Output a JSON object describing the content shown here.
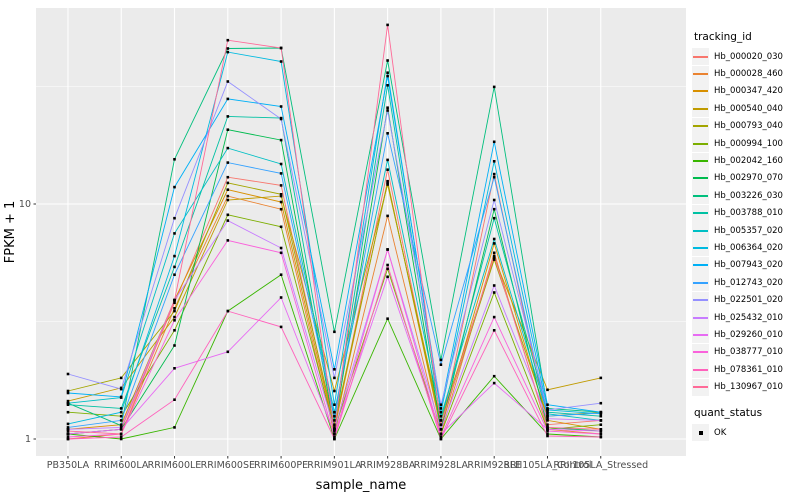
{
  "chart_data": {
    "type": "line",
    "xlabel": "sample_name",
    "ylabel": "FPKM + 1",
    "y_scale": "log10",
    "y_ticks": [
      1,
      10
    ],
    "y_minor_ticks": [
      3.16,
      31.6
    ],
    "ylim": [
      0.92,
      67
    ],
    "grid": "on",
    "panel_bg": "#EBEBEB",
    "grid_color": "#FFFFFF",
    "point_color": "#000000",
    "axis_text_color": "#4D4D4D",
    "legend": {
      "color_title": "tracking_id",
      "shape_title": "quant_status",
      "shape_items": [
        {
          "label": "OK"
        }
      ],
      "position": "right"
    },
    "categories": [
      "PB350LA",
      "RRIM600LA",
      "RRIM600LE",
      "RRIM600SE",
      "RRIM600PE",
      "RRIM901LA",
      "RRIM928BA",
      "RRIM928LA",
      "RRIM928LE",
      "RRII105LA_Control",
      "RRII105LA_Stressed"
    ],
    "series": [
      {
        "name": "Hb_000020_030",
        "color": "#F8766D",
        "values": [
          1.05,
          1.1,
          3.8,
          13.0,
          12.0,
          1.1,
          14.0,
          1.1,
          13.4,
          1.15,
          1.2
        ]
      },
      {
        "name": "Hb_000028_460",
        "color": "#EA8331",
        "values": [
          1.0,
          1.05,
          3.6,
          10.8,
          9.5,
          1.05,
          8.9,
          1.05,
          6.2,
          1.1,
          1.05
        ]
      },
      {
        "name": "Hb_000347_420",
        "color": "#D89000",
        "values": [
          1.1,
          1.15,
          3.9,
          11.5,
          10.2,
          1.1,
          12.5,
          1.1,
          6.8,
          1.2,
          1.1
        ]
      },
      {
        "name": "Hb_000540_040",
        "color": "#C09B00",
        "values": [
          1.45,
          1.65,
          3.3,
          10.4,
          10.8,
          1.6,
          12.1,
          1.2,
          5.9,
          1.62,
          1.82
        ]
      },
      {
        "name": "Hb_000793_040",
        "color": "#A3A500",
        "values": [
          1.6,
          1.82,
          3.5,
          12.3,
          11.0,
          1.15,
          12.3,
          1.15,
          5.8,
          1.25,
          1.3
        ]
      },
      {
        "name": "Hb_000994_100",
        "color": "#7CAE00",
        "values": [
          1.3,
          1.25,
          2.9,
          9.0,
          8.0,
          1.1,
          5.3,
          1.05,
          4.2,
          1.1,
          1.15
        ]
      },
      {
        "name": "Hb_002042_160",
        "color": "#39B600",
        "values": [
          1.05,
          1.0,
          1.12,
          3.5,
          5.0,
          1.0,
          3.25,
          1.0,
          1.85,
          1.05,
          1.02
        ]
      },
      {
        "name": "Hb_002970_070",
        "color": "#00BB4E",
        "values": [
          1.05,
          1.1,
          2.5,
          20.7,
          18.7,
          1.12,
          25.7,
          1.1,
          9.5,
          1.12,
          1.08
        ]
      },
      {
        "name": "Hb_003226_030",
        "color": "#00BF7D",
        "values": [
          1.42,
          1.14,
          15.5,
          45.9,
          46.1,
          2.86,
          40.8,
          2.17,
          31.5,
          1.35,
          1.3
        ]
      },
      {
        "name": "Hb_003788_010",
        "color": "#00C1A3",
        "values": [
          1.4,
          1.35,
          5.4,
          23.6,
          23.2,
          1.2,
          32.0,
          1.2,
          8.7,
          1.3,
          1.25
        ]
      },
      {
        "name": "Hb_005357_020",
        "color": "#00BFC4",
        "values": [
          1.42,
          1.5,
          7.5,
          17.3,
          14.8,
          1.3,
          15.4,
          1.25,
          7.1,
          1.28,
          1.2
        ]
      },
      {
        "name": "Hb_006364_020",
        "color": "#00BAE0",
        "values": [
          1.16,
          1.3,
          6.0,
          44.3,
          40.4,
          1.4,
          36.2,
          1.3,
          15.2,
          1.33,
          1.28
        ]
      },
      {
        "name": "Hb_007943_020",
        "color": "#00B0F6",
        "values": [
          1.57,
          1.51,
          11.8,
          28.0,
          26.0,
          1.98,
          35.0,
          1.35,
          18.4,
          1.4,
          1.3
        ]
      },
      {
        "name": "Hb_012743_020",
        "color": "#35A2FF",
        "values": [
          1.12,
          1.2,
          5.0,
          15.0,
          13.5,
          1.25,
          20.0,
          2.07,
          13.0,
          1.25,
          1.29
        ]
      },
      {
        "name": "Hb_022501_020",
        "color": "#9590FF",
        "values": [
          1.89,
          1.63,
          8.7,
          33.2,
          23.0,
          1.82,
          25.0,
          1.4,
          10.4,
          1.33,
          1.42
        ]
      },
      {
        "name": "Hb_025432_010",
        "color": "#C77CFF",
        "values": [
          1.1,
          1.12,
          3.9,
          8.5,
          6.5,
          1.1,
          6.4,
          1.1,
          4.5,
          1.22,
          1.2
        ]
      },
      {
        "name": "Hb_029260_010",
        "color": "#E76BF3",
        "values": [
          1.05,
          1.1,
          2.0,
          2.35,
          4.0,
          1.05,
          4.9,
          1.05,
          1.73,
          1.1,
          1.08
        ]
      },
      {
        "name": "Hb_038777_010",
        "color": "#FA62DB",
        "values": [
          1.02,
          1.05,
          3.2,
          7.0,
          6.2,
          1.02,
          6.4,
          1.02,
          3.3,
          1.08,
          1.05
        ]
      },
      {
        "name": "Hb_078361_010",
        "color": "#FF62BC",
        "values": [
          1.0,
          1.02,
          1.47,
          3.5,
          3.0,
          1.0,
          5.5,
          1.0,
          2.9,
          1.03,
          1.02
        ]
      },
      {
        "name": "Hb_130967_010",
        "color": "#FF6A98",
        "values": [
          1.08,
          1.05,
          3.9,
          49.8,
          46.1,
          1.08,
          57.8,
          1.15,
          6.0,
          1.12,
          1.1
        ]
      }
    ]
  }
}
